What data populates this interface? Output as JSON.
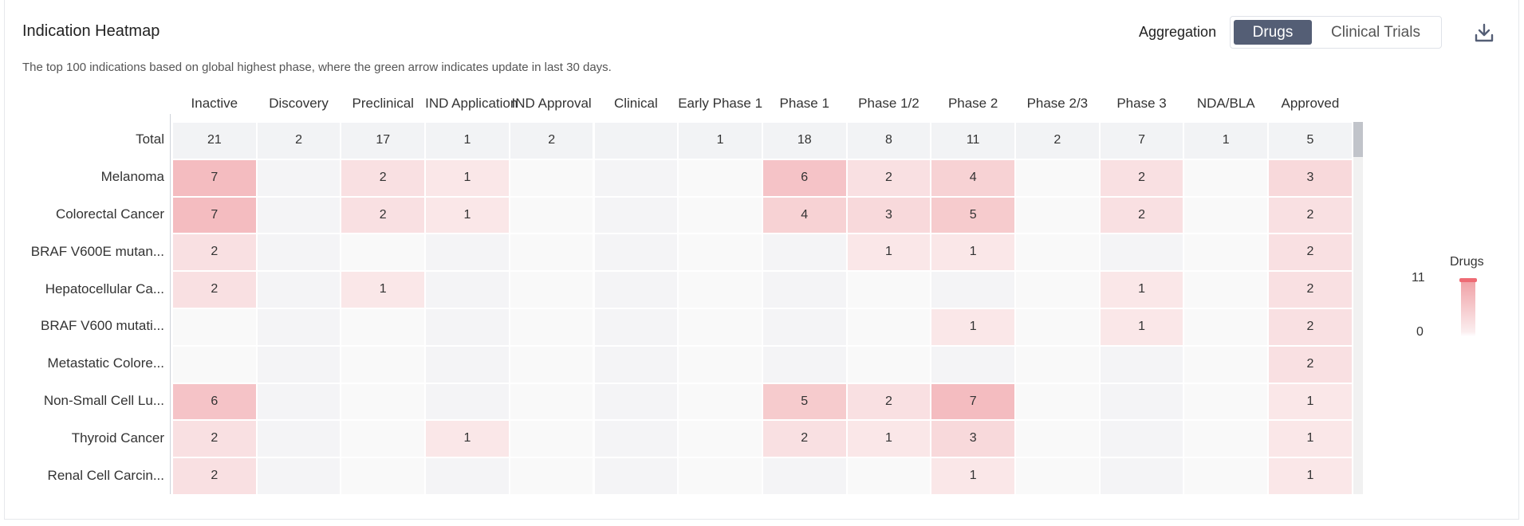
{
  "header": {
    "title": "Indication Heatmap",
    "subtitle": "The top 100 indications based on global highest phase, where the green arrow indicates update in last 30 days.",
    "aggregation_label": "Aggregation",
    "toggle": {
      "active": "Drugs",
      "inactive": "Clinical Trials"
    },
    "download_icon": "download-icon"
  },
  "legend": {
    "title": "Drugs",
    "max": "11",
    "min": "0"
  },
  "colors": {
    "accent": "#545e75",
    "heat_high": "#f0a0a5",
    "heat_low": "#fbeeef"
  },
  "chart_data": {
    "type": "heatmap",
    "columns": [
      "Inactive",
      "Discovery",
      "Preclinical",
      "IND Application",
      "IND Approval",
      "Clinical",
      "Early Phase 1",
      "Phase 1",
      "Phase 1/2",
      "Phase 2",
      "Phase 2/3",
      "Phase 3",
      "NDA/BLA",
      "Approved"
    ],
    "total_label": "Total",
    "totals": [
      21,
      2,
      17,
      1,
      2,
      null,
      1,
      18,
      8,
      11,
      2,
      7,
      1,
      5
    ],
    "rows": [
      {
        "label": "Melanoma",
        "values": [
          7,
          null,
          2,
          1,
          null,
          null,
          null,
          6,
          2,
          4,
          null,
          2,
          null,
          3
        ]
      },
      {
        "label": "Colorectal Cancer",
        "values": [
          7,
          null,
          2,
          1,
          null,
          null,
          null,
          4,
          3,
          5,
          null,
          2,
          null,
          2
        ]
      },
      {
        "label": "BRAF V600E mutan...",
        "values": [
          2,
          null,
          null,
          null,
          null,
          null,
          null,
          null,
          1,
          1,
          null,
          null,
          null,
          2
        ]
      },
      {
        "label": "Hepatocellular Ca...",
        "values": [
          2,
          null,
          1,
          null,
          null,
          null,
          null,
          null,
          null,
          null,
          null,
          1,
          null,
          2
        ]
      },
      {
        "label": "BRAF V600 mutati...",
        "values": [
          null,
          null,
          null,
          null,
          null,
          null,
          null,
          null,
          null,
          1,
          null,
          1,
          null,
          2
        ]
      },
      {
        "label": "Metastatic Colore...",
        "values": [
          null,
          null,
          null,
          null,
          null,
          null,
          null,
          null,
          null,
          null,
          null,
          null,
          null,
          2
        ]
      },
      {
        "label": "Non-Small Cell Lu...",
        "values": [
          6,
          null,
          null,
          null,
          null,
          null,
          null,
          5,
          2,
          7,
          null,
          null,
          null,
          1
        ]
      },
      {
        "label": "Thyroid Cancer",
        "values": [
          2,
          null,
          null,
          1,
          null,
          null,
          null,
          2,
          1,
          3,
          null,
          null,
          null,
          1
        ]
      },
      {
        "label": "Renal Cell Carcin...",
        "values": [
          2,
          null,
          null,
          null,
          null,
          null,
          null,
          null,
          null,
          1,
          null,
          null,
          null,
          1
        ]
      }
    ],
    "scale": {
      "min": 0,
      "max": 11
    }
  }
}
